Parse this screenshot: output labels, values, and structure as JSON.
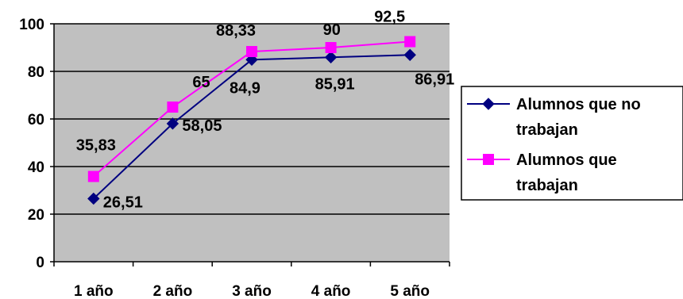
{
  "chart_data": {
    "type": "line",
    "title": "",
    "xlabel": "",
    "ylabel": "",
    "categories": [
      "1 año",
      "2 año",
      "3 año",
      "4 año",
      "5 año"
    ],
    "ylim": [
      0,
      100
    ],
    "yticks": [
      0,
      20,
      40,
      60,
      80,
      100
    ],
    "grid": true,
    "legend_position": "right",
    "plot_background": "#c0c0c0",
    "series": [
      {
        "name": "Alumnos que no trabajan",
        "legend_lines": [
          "Alumnos que no",
          "trabajan"
        ],
        "values": [
          26.51,
          58.05,
          84.9,
          85.91,
          86.91
        ],
        "labels": [
          "26,51",
          "58,05",
          "84,9",
          "85,91",
          "86,91"
        ],
        "color": "#000080",
        "marker": "diamond"
      },
      {
        "name": "Alumnos que trabajan",
        "legend_lines": [
          "Alumnos que",
          "trabajan"
        ],
        "values": [
          35.83,
          65,
          88.33,
          90,
          92.5
        ],
        "labels": [
          "35,83",
          "65",
          "88,33",
          "90",
          "92,5"
        ],
        "color": "#ff00ff",
        "marker": "square"
      }
    ]
  }
}
